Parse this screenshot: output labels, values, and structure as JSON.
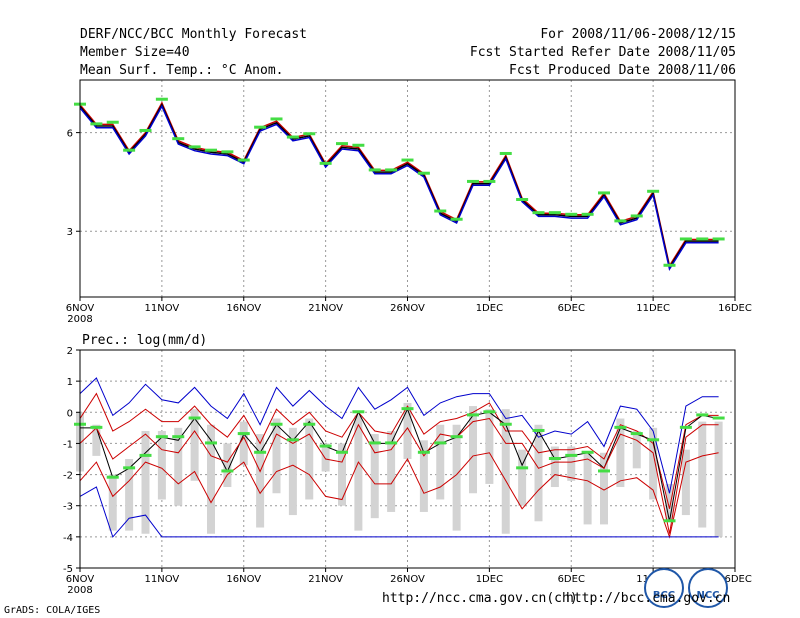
{
  "header": {
    "title": "DERF/NCC/BCC Monthly Forecast",
    "member_size": "Member Size=40",
    "variable": "Mean Surf. Temp.: °C Anom.",
    "period": "For 2008/11/06-2008/12/15",
    "started": "Fcst Started Refer Date 2008/11/05",
    "produced": "Fcst Produced Date 2008/11/06"
  },
  "footer": {
    "url_1": "http://ncc.cma.gov.cn(ch)",
    "url_2": "http://bcc.cma.gov.cn",
    "grads": "GrADS: COLA/IGES",
    "logo_bcc": "BCC",
    "logo_ncc": "NCC"
  },
  "colors": {
    "ensemble": "#0000cc",
    "spread": "#cc0000",
    "mean": "#000000",
    "obs": "#44dd44",
    "bar": "#d3d3d3"
  },
  "chart_data": [
    {
      "type": "line",
      "title": "Mean Surf. Temp.: °C Anom.",
      "xlabel": "",
      "ylabel": "",
      "x_tick_labels": [
        "6NOV",
        "11NOV",
        "16NOV",
        "21NOV",
        "26NOV",
        "1DEC",
        "6DEC",
        "11DEC",
        "16DEC"
      ],
      "x_year_label": "2008",
      "x_tick_days": [
        0,
        5,
        10,
        15,
        20,
        25,
        30,
        35,
        40
      ],
      "xlim": [
        0,
        40
      ],
      "ylim": [
        1.0,
        7.6
      ],
      "y_ticks": [
        3,
        6
      ],
      "grid": true,
      "days": [
        0,
        1,
        2,
        3,
        4,
        5,
        6,
        7,
        8,
        9,
        10,
        11,
        12,
        13,
        14,
        15,
        16,
        17,
        18,
        19,
        20,
        21,
        22,
        23,
        24,
        25,
        26,
        27,
        28,
        29,
        30,
        31,
        32,
        33,
        34,
        35,
        36,
        37,
        38,
        39
      ],
      "series": [
        {
          "name": "ensemble upper",
          "values": [
            6.85,
            6.25,
            6.25,
            5.45,
            6.0,
            6.9,
            5.75,
            5.55,
            5.45,
            5.4,
            5.15,
            6.15,
            6.35,
            5.85,
            5.95,
            5.05,
            5.6,
            5.55,
            4.85,
            4.85,
            5.1,
            4.75,
            3.6,
            3.35,
            4.5,
            4.5,
            5.3,
            4.0,
            3.55,
            3.55,
            3.5,
            3.5,
            4.15,
            3.3,
            3.45,
            4.2,
            1.95,
            2.75,
            2.75,
            2.75
          ]
        },
        {
          "name": "ensemble mean",
          "values": [
            6.8,
            6.2,
            6.2,
            5.4,
            5.95,
            6.85,
            5.7,
            5.5,
            5.4,
            5.35,
            5.1,
            6.1,
            6.3,
            5.8,
            5.9,
            5.0,
            5.55,
            5.5,
            4.8,
            4.8,
            5.05,
            4.7,
            3.55,
            3.3,
            4.45,
            4.45,
            5.25,
            3.95,
            3.5,
            3.5,
            3.45,
            3.45,
            4.1,
            3.25,
            3.4,
            4.15,
            1.9,
            2.7,
            2.7,
            2.7
          ]
        },
        {
          "name": "ensemble lower",
          "values": [
            6.75,
            6.15,
            6.15,
            5.35,
            5.9,
            6.8,
            5.65,
            5.45,
            5.35,
            5.3,
            5.05,
            6.05,
            6.25,
            5.75,
            5.85,
            4.95,
            5.5,
            5.45,
            4.75,
            4.75,
            5.0,
            4.65,
            3.5,
            3.25,
            4.4,
            4.4,
            5.2,
            3.9,
            3.45,
            3.45,
            3.4,
            3.4,
            4.05,
            3.2,
            3.35,
            4.1,
            1.85,
            2.65,
            2.65,
            2.65
          ]
        },
        {
          "name": "observation",
          "values": [
            6.85,
            6.25,
            6.3,
            5.45,
            6.05,
            7.0,
            5.8,
            5.55,
            5.45,
            5.4,
            5.15,
            6.15,
            6.4,
            5.85,
            5.95,
            5.05,
            5.65,
            5.6,
            4.85,
            4.85,
            5.15,
            4.75,
            3.6,
            3.35,
            4.5,
            4.5,
            5.35,
            3.95,
            3.55,
            3.55,
            3.5,
            3.5,
            4.15,
            3.3,
            3.45,
            4.2,
            1.95,
            2.75,
            2.75,
            2.75
          ]
        }
      ]
    },
    {
      "type": "line",
      "title": "Prec.: log(mm/d)",
      "xlabel": "",
      "ylabel": "",
      "x_tick_labels": [
        "6NOV",
        "11NOV",
        "16NOV",
        "21NOV",
        "26NOV",
        "1DEC",
        "6DEC",
        "11DEC",
        "16DEC"
      ],
      "x_year_label": "2008",
      "x_tick_days": [
        0,
        5,
        10,
        15,
        20,
        25,
        30,
        35,
        40
      ],
      "xlim": [
        0,
        40
      ],
      "ylim": [
        -5,
        2
      ],
      "y_ticks": [
        -5,
        -4,
        -3,
        -2,
        -1,
        0,
        1,
        2
      ],
      "grid": true,
      "days": [
        0,
        1,
        2,
        3,
        4,
        5,
        6,
        7,
        8,
        9,
        10,
        11,
        12,
        13,
        14,
        15,
        16,
        17,
        18,
        19,
        20,
        21,
        22,
        23,
        24,
        25,
        26,
        27,
        28,
        29,
        30,
        31,
        32,
        33,
        34,
        35,
        36,
        37,
        38,
        39
      ],
      "bars": {
        "low": [
          -1.9,
          -1.4,
          -3.8,
          -3.8,
          -3.9,
          -2.8,
          -3.0,
          -2.2,
          -3.9,
          -2.4,
          -1.7,
          -3.7,
          -2.6,
          -3.3,
          -2.8,
          -1.9,
          -3.0,
          -3.8,
          -3.4,
          -3.2,
          -1.5,
          -3.2,
          -2.8,
          -3.8,
          -2.6,
          -2.3,
          -3.9,
          -3.0,
          -3.5,
          -2.4,
          -2.2,
          -3.6,
          -3.6,
          -2.4,
          -1.8,
          -2.8,
          -3.5,
          -3.3,
          -3.7,
          -4.0
        ],
        "high": [
          0.0,
          -0.4,
          -2.0,
          -1.5,
          -0.6,
          -0.6,
          -0.5,
          0.1,
          -0.4,
          -1.0,
          -0.3,
          -0.7,
          -0.2,
          -0.5,
          -0.2,
          -1.0,
          -1.0,
          -0.1,
          -0.7,
          -0.6,
          0.3,
          -0.9,
          -0.4,
          -0.4,
          0.2,
          0.1,
          0.1,
          -1.2,
          -0.4,
          -1.1,
          -1.1,
          -1.3,
          -1.3,
          -0.2,
          -0.6,
          -0.5,
          -2.3,
          -1.2,
          -0.3,
          -0.3
        ]
      },
      "series": [
        {
          "name": "ensemble max",
          "values": [
            0.6,
            1.1,
            -0.1,
            0.3,
            0.9,
            0.4,
            0.3,
            0.8,
            0.2,
            -0.2,
            0.6,
            -0.4,
            0.8,
            0.2,
            0.7,
            0.2,
            -0.2,
            0.8,
            0.1,
            0.4,
            0.8,
            -0.1,
            0.3,
            0.5,
            0.6,
            0.6,
            -0.2,
            -0.1,
            -0.8,
            -0.6,
            -0.7,
            -0.3,
            -1.1,
            0.2,
            0.1,
            -0.6,
            -2.6,
            0.2,
            0.5,
            0.5
          ]
        },
        {
          "name": "ensemble upper bound",
          "values": [
            -0.2,
            0.6,
            -0.6,
            -0.3,
            0.1,
            -0.3,
            -0.3,
            0.2,
            -0.4,
            -0.8,
            -0.1,
            -1.0,
            0.1,
            -0.4,
            0.0,
            -0.6,
            -0.8,
            0.0,
            -0.6,
            -0.7,
            0.2,
            -0.7,
            -0.3,
            -0.2,
            0.0,
            0.3,
            -0.6,
            -0.6,
            -1.3,
            -1.2,
            -1.2,
            -1.1,
            -1.5,
            -0.4,
            -0.6,
            -1.0,
            -3.1,
            -0.4,
            -0.1,
            -0.1
          ]
        },
        {
          "name": "ensemble mean",
          "values": [
            -0.5,
            -0.5,
            -2.1,
            -1.8,
            -1.3,
            -0.8,
            -0.9,
            -0.2,
            -0.9,
            -1.9,
            -0.7,
            -1.3,
            -0.4,
            -0.9,
            -0.3,
            -1.1,
            -1.3,
            0.0,
            -1.0,
            -1.0,
            0.1,
            -1.3,
            -1.0,
            -0.8,
            -0.1,
            0.0,
            -0.4,
            -1.7,
            -0.6,
            -1.5,
            -1.4,
            -1.3,
            -1.8,
            -0.5,
            -0.7,
            -0.9,
            -3.5,
            -0.5,
            -0.1,
            -0.2
          ]
        },
        {
          "name": "ensemble lower bound",
          "values": [
            -1.0,
            -0.5,
            -1.5,
            -1.1,
            -0.7,
            -1.2,
            -1.3,
            -0.6,
            -1.4,
            -1.6,
            -0.8,
            -1.9,
            -0.7,
            -1.0,
            -0.7,
            -1.5,
            -1.6,
            -0.4,
            -1.3,
            -1.2,
            -0.5,
            -1.4,
            -0.7,
            -0.8,
            -0.3,
            -0.2,
            -1.0,
            -1.0,
            -1.8,
            -1.6,
            -1.6,
            -1.5,
            -1.8,
            -0.7,
            -0.9,
            -1.3,
            -3.9,
            -0.8,
            -0.4,
            -0.4
          ]
        },
        {
          "name": "ensemble lower 2",
          "values": [
            -2.2,
            -1.6,
            -2.7,
            -2.2,
            -1.6,
            -1.8,
            -2.3,
            -1.9,
            -2.9,
            -2.0,
            -1.6,
            -2.6,
            -1.9,
            -1.7,
            -2.0,
            -2.7,
            -2.8,
            -1.6,
            -2.3,
            -2.3,
            -1.5,
            -2.6,
            -2.4,
            -2.0,
            -1.4,
            -1.3,
            -2.2,
            -3.1,
            -2.5,
            -2.0,
            -2.1,
            -2.2,
            -2.5,
            -2.2,
            -2.1,
            -2.5,
            -4.0,
            -1.6,
            -1.4,
            -1.3
          ]
        },
        {
          "name": "ensemble min",
          "values": [
            -2.7,
            -2.4,
            -4.0,
            -3.4,
            -3.3,
            -4.0,
            -4.0,
            -4.0,
            -4.0,
            -4.0,
            -4.0,
            -4.0,
            -4.0,
            -4.0,
            -4.0,
            -4.0,
            -4.0,
            -4.0,
            -4.0,
            -4.0,
            -4.0,
            -4.0,
            -4.0,
            -4.0,
            -4.0,
            -4.0,
            -4.0,
            -4.0,
            -4.0,
            -4.0,
            -4.0,
            -4.0,
            -4.0,
            -4.0,
            -4.0,
            -4.0,
            -4.0,
            -4.0,
            -4.0,
            -4.0
          ]
        },
        {
          "name": "observation",
          "values": [
            -0.4,
            -0.5,
            -2.1,
            -1.8,
            -1.4,
            -0.8,
            -0.8,
            -0.2,
            -1.0,
            -1.9,
            -0.7,
            -1.3,
            -0.4,
            -0.9,
            -0.4,
            -1.1,
            -1.3,
            0.0,
            -1.0,
            -1.0,
            0.1,
            -1.3,
            -1.0,
            -0.8,
            -0.1,
            0.0,
            -0.4,
            -1.8,
            -0.6,
            -1.5,
            -1.4,
            -1.3,
            -1.9,
            -0.5,
            -0.7,
            -0.9,
            -3.5,
            -0.5,
            -0.1,
            -0.2
          ]
        }
      ]
    }
  ]
}
